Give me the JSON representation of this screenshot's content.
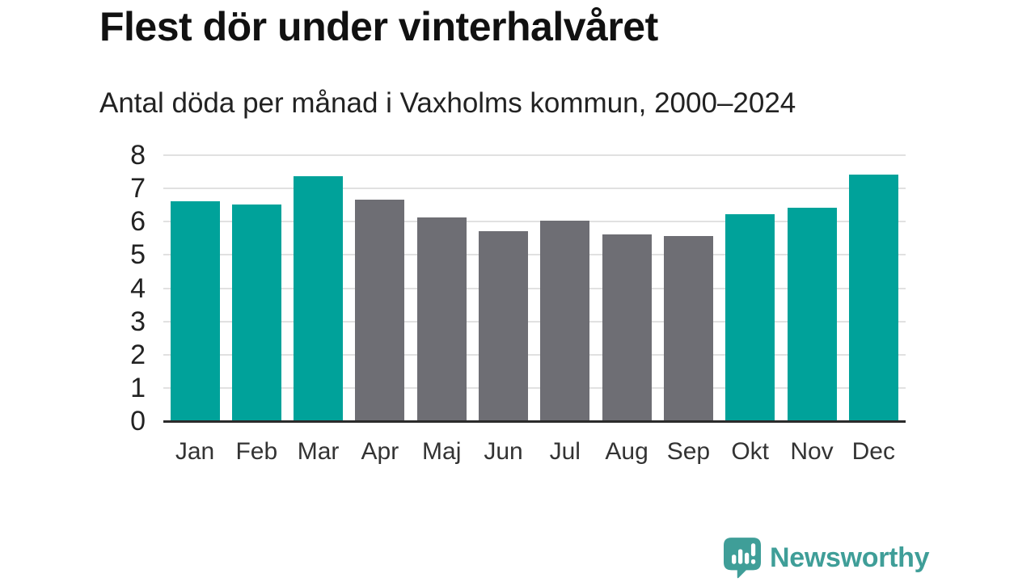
{
  "title": "Flest dör under vinterhalvåret",
  "subtitle": "Antal döda per månad i Vaxholms kommun, 2000–2024",
  "chart_data": {
    "type": "bar",
    "categories": [
      "Jan",
      "Feb",
      "Mar",
      "Apr",
      "Maj",
      "Jun",
      "Jul",
      "Aug",
      "Sep",
      "Okt",
      "Nov",
      "Dec"
    ],
    "values": [
      6.6,
      6.5,
      7.35,
      6.65,
      6.1,
      5.7,
      6.0,
      5.6,
      5.55,
      6.2,
      6.4,
      7.4
    ],
    "highlighted": [
      true,
      true,
      true,
      false,
      false,
      false,
      false,
      false,
      false,
      true,
      true,
      true
    ],
    "title": "Flest dör under vinterhalvåret",
    "subtitle": "Antal döda per månad i Vaxholms kommun, 2000–2024",
    "xlabel": "",
    "ylabel": "",
    "ylim": [
      0,
      8
    ],
    "yticks": [
      0,
      1,
      2,
      3,
      4,
      5,
      6,
      7,
      8
    ],
    "grid": true,
    "legend": "none",
    "colors": {
      "highlight_bar": "#00a29a",
      "default_bar": "#6e6e74",
      "gridline": "#e1e1e1",
      "axis_line": "#2b2b2b"
    }
  },
  "branding": {
    "logo_text": "Newsworthy",
    "logo_color": "#3f9e98",
    "logo_icon": "bar-chart-speech-bubble-icon"
  }
}
